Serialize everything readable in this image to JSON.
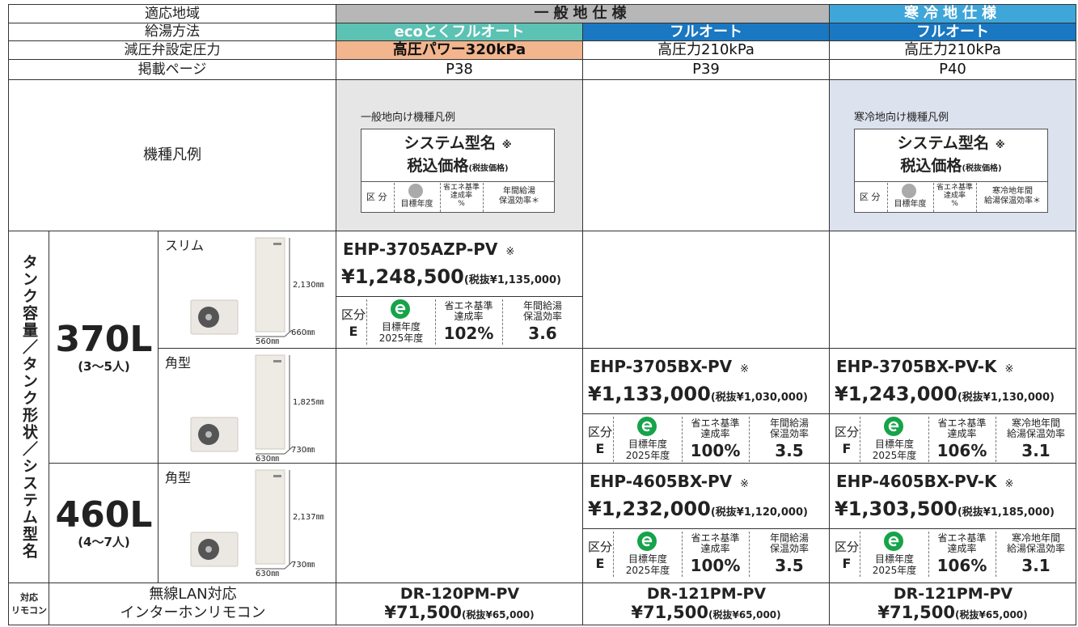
{
  "header": {
    "region": {
      "label": "適応地域",
      "general": "一般地仕様",
      "cold": "寒冷地仕様"
    },
    "supply": {
      "label": "給湯方法",
      "cols": [
        "ecoとくフルオート",
        "フルオート",
        "フルオート"
      ]
    },
    "pressure": {
      "label": "減圧弁設定圧力",
      "cols": [
        "高圧パワー320kPa",
        "高圧力210kPa",
        "高圧力210kPa"
      ]
    },
    "page": {
      "label": "掲載ページ",
      "cols": [
        "P38",
        "P39",
        "P40"
      ]
    }
  },
  "legend": {
    "label": "機種凡例",
    "general": {
      "title": "一般地向け機種凡例",
      "name": "システム型名",
      "mark": "※",
      "price": "税込価格",
      "price_ex": "(税抜価格)",
      "class": "区 分",
      "target": "目標年度",
      "rate": [
        "省エネ基準",
        "達成率",
        "%"
      ],
      "eff": [
        "年間給湯",
        "保温効率＊"
      ]
    },
    "cold": {
      "title": "寒冷地向け機種凡例",
      "name": "システム型名",
      "mark": "※",
      "price": "税込価格",
      "price_ex": "(税抜価格)",
      "class": "区 分",
      "target": "目標年度",
      "rate": [
        "省エネ基準",
        "達成率",
        "%"
      ],
      "eff": [
        "寒冷地年間",
        "給湯保温効率＊"
      ]
    }
  },
  "side_label": "タンク容量／タンク形状／システム型名",
  "tanks": [
    {
      "capacity": "370L",
      "people": "(3〜5人)",
      "variants": [
        {
          "shape": "スリム",
          "dims": {
            "h": "2,130㎜",
            "w": "560㎜",
            "d": "660㎜"
          },
          "models": {
            "general_eco": {
              "name": "EHP-3705AZP-PV",
              "mark": "※",
              "price": "¥1,248,500",
              "price_ex": "(税抜¥1,135,000)",
              "class_label": "区分",
              "class": "E",
              "target_label": "目標年度",
              "target_year": "2025年度",
              "rate_label": [
                "省エネ基準",
                "達成率"
              ],
              "rate": "102%",
              "eff_label": [
                "年間給湯",
                "保温効率"
              ],
              "eff": "3.6"
            }
          }
        },
        {
          "shape": "角型",
          "dims": {
            "h": "1,825㎜",
            "w": "630㎜",
            "d": "730㎜"
          },
          "models": {
            "general": {
              "name": "EHP-3705BX-PV",
              "mark": "※",
              "price": "¥1,133,000",
              "price_ex": "(税抜¥1,030,000)",
              "class_label": "区分",
              "class": "E",
              "target_label": "目標年度",
              "target_year": "2025年度",
              "rate_label": [
                "省エネ基準",
                "達成率"
              ],
              "rate": "100%",
              "eff_label": [
                "年間給湯",
                "保温効率"
              ],
              "eff": "3.5"
            },
            "cold": {
              "name": "EHP-3705BX-PV-K",
              "mark": "※",
              "price": "¥1,243,000",
              "price_ex": "(税抜¥1,130,000)",
              "class_label": "区分",
              "class": "F",
              "target_label": "目標年度",
              "target_year": "2025年度",
              "rate_label": [
                "省エネ基準",
                "達成率"
              ],
              "rate": "106%",
              "eff_label": [
                "寒冷地年間",
                "給湯保温効率"
              ],
              "eff": "3.1"
            }
          }
        }
      ]
    },
    {
      "capacity": "460L",
      "people": "(4〜7人)",
      "variants": [
        {
          "shape": "角型",
          "dims": {
            "h": "2,137㎜",
            "w": "630㎜",
            "d": "730㎜"
          },
          "models": {
            "general": {
              "name": "EHP-4605BX-PV",
              "mark": "※",
              "price": "¥1,232,000",
              "price_ex": "(税抜¥1,120,000)",
              "class_label": "区分",
              "class": "E",
              "target_label": "目標年度",
              "target_year": "2025年度",
              "rate_label": [
                "省エネ基準",
                "達成率"
              ],
              "rate": "100%",
              "eff_label": [
                "年間給湯",
                "保温効率"
              ],
              "eff": "3.5"
            },
            "cold": {
              "name": "EHP-4605BX-PV-K",
              "mark": "※",
              "price": "¥1,303,500",
              "price_ex": "(税抜¥1,185,000)",
              "class_label": "区分",
              "class": "F",
              "target_label": "目標年度",
              "target_year": "2025年度",
              "rate_label": [
                "省エネ基準",
                "達成率"
              ],
              "rate": "106%",
              "eff_label": [
                "寒冷地年間",
                "給湯保温効率"
              ],
              "eff": "3.1"
            }
          }
        }
      ]
    }
  ],
  "remote": {
    "label": [
      "対応",
      "リモコン"
    ],
    "desc": [
      "無線LAN対応",
      "インターホンリモコン"
    ],
    "models": [
      {
        "name": "DR-120PM-PV",
        "price": "¥71,500",
        "price_ex": "(税抜¥65,000)"
      },
      {
        "name": "DR-121PM-PV",
        "price": "¥71,500",
        "price_ex": "(税抜¥65,000)"
      },
      {
        "name": "DR-121PM-PV",
        "price": "¥71,500",
        "price_ex": "(税抜¥65,000)"
      }
    ]
  }
}
